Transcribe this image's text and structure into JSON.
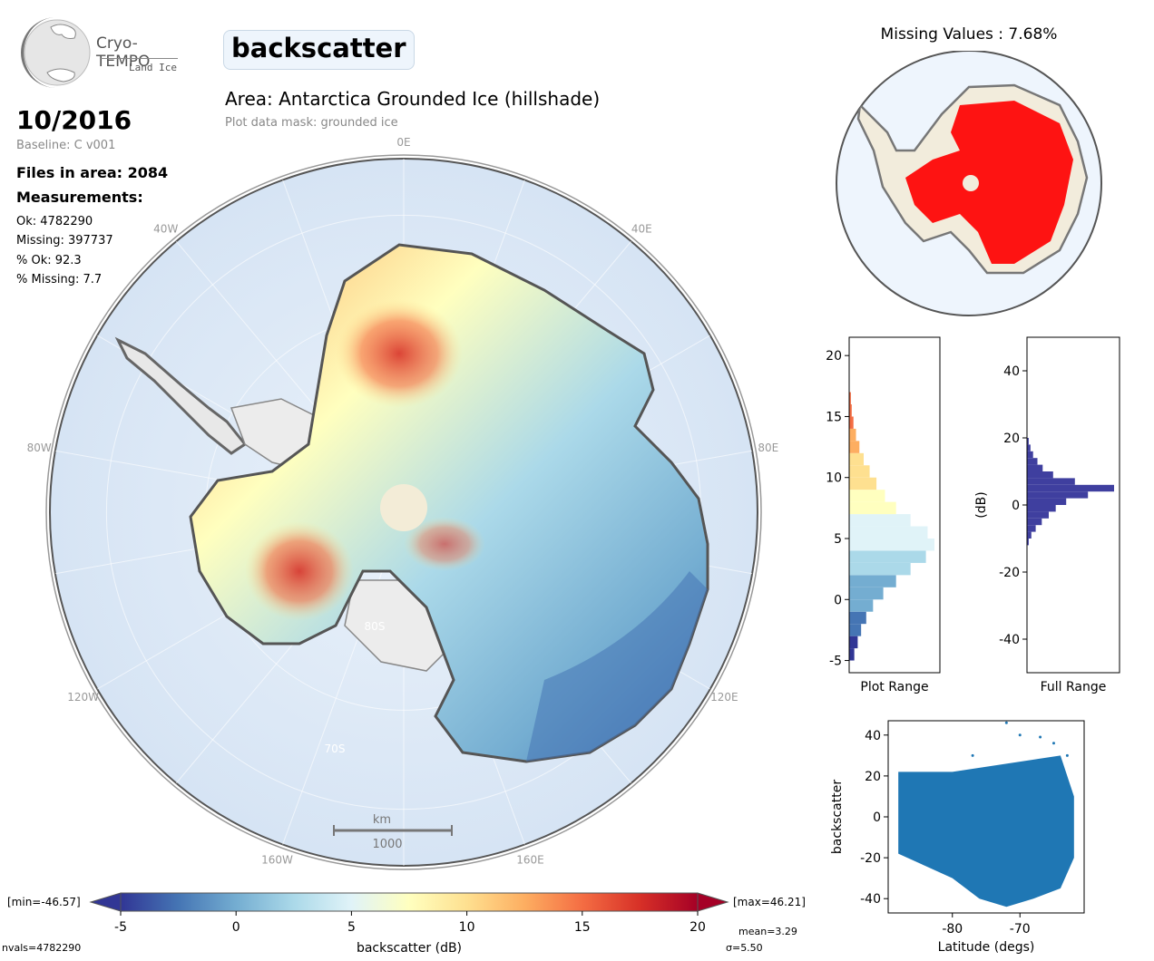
{
  "logo": {
    "name": "Cryo-TEMPO",
    "subtitle": "Land Ice"
  },
  "parameter_title": "backscatter",
  "area_title": "Area: Antarctica Grounded Ice (hillshade)",
  "mask_note": "Plot data mask: grounded ice",
  "date": "10/2016",
  "baseline": "Baseline: C v001",
  "files_in_area": "Files in area: 2084",
  "measurements_heading": "Measurements:",
  "stats": {
    "ok": "Ok: 4782290",
    "missing": "Missing: 397737",
    "pct_ok": "% Ok: 92.3",
    "pct_missing": "% Missing: 7.7"
  },
  "map": {
    "lon_labels": [
      "0E",
      "40E",
      "80E",
      "120E",
      "160E",
      "160W",
      "120W",
      "80W",
      "40W"
    ],
    "lat_labels": [
      "80S",
      "70S"
    ],
    "scale_bar": {
      "unit": "km",
      "length": "1000"
    }
  },
  "missing_map": {
    "title": "Missing Values : 7.68%"
  },
  "colors": {
    "colormap": [
      "#313695",
      "#4575b4",
      "#74add1",
      "#abd9e9",
      "#e0f3f8",
      "#ffffbf",
      "#fee090",
      "#fdae61",
      "#f46d43",
      "#d73027",
      "#a50026"
    ],
    "ocean": "#dce8f6",
    "land_grey": "#e9e9e9",
    "missing": "#ff0000",
    "hist_full": "#3f3f9f",
    "scatter": "#1f77b4",
    "pole_hole": "#f3ecd7"
  },
  "colorbar": {
    "min_label": "[min=-46.57]",
    "max_label": "[max=46.21]",
    "ticks": [
      "-5",
      "0",
      "5",
      "10",
      "15",
      "20"
    ],
    "range": [
      -5,
      20
    ],
    "label": "backscatter (dB)",
    "mean": "mean=3.29",
    "sigma": "σ=5.50",
    "nvals": "nvals=4782290"
  },
  "chart_data": [
    {
      "type": "bar",
      "orientation": "horizontal",
      "title": "",
      "xlabel": "Plot Range",
      "ylabel": "",
      "ylim": [
        -6,
        21.5
      ],
      "yticks": [
        -5,
        0,
        5,
        10,
        15,
        20
      ],
      "bins": [
        -5,
        -4,
        -3,
        -2,
        -1,
        0,
        1,
        2,
        3,
        4,
        5,
        6,
        7,
        8,
        9,
        10,
        11,
        12,
        13,
        14,
        15,
        16
      ],
      "counts": [
        0.06,
        0.1,
        0.14,
        0.2,
        0.28,
        0.4,
        0.55,
        0.72,
        0.9,
        1.0,
        0.92,
        0.72,
        0.55,
        0.42,
        0.32,
        0.24,
        0.17,
        0.12,
        0.08,
        0.05,
        0.03,
        0.02
      ]
    },
    {
      "type": "bar",
      "orientation": "horizontal",
      "title": "",
      "xlabel": "Full Range",
      "ylabel": "(dB)",
      "ylim": [
        -50,
        50
      ],
      "yticks": [
        -40,
        -20,
        0,
        20,
        40
      ],
      "bins": [
        -12,
        -10,
        -8,
        -6,
        -4,
        -2,
        0,
        2,
        4,
        6,
        8,
        10,
        12,
        14,
        16,
        18
      ],
      "counts": [
        0.02,
        0.05,
        0.1,
        0.17,
        0.25,
        0.33,
        0.45,
        0.7,
        1.0,
        0.55,
        0.3,
        0.18,
        0.12,
        0.07,
        0.04,
        0.02
      ]
    },
    {
      "type": "scatter",
      "title": "",
      "xlabel": "Latitude (degs)",
      "ylabel": "backscatter",
      "xlim": [
        -89.5,
        -60.5
      ],
      "ylim": [
        -47,
        47
      ],
      "xticks": [
        -80,
        -70
      ],
      "yticks": [
        -40,
        -20,
        0,
        20,
        40
      ],
      "series": [
        {
          "x": [
            -88,
            -84,
            -80,
            -76,
            -72,
            -68,
            -64,
            -62
          ],
          "y_low": [
            -18,
            -24,
            -30,
            -40,
            -44,
            -40,
            -35,
            -20
          ],
          "y_high": [
            22,
            22,
            22,
            24,
            26,
            28,
            30,
            10
          ],
          "outliers": [
            [
              -72,
              46
            ],
            [
              -70,
              40
            ],
            [
              -67,
              39
            ],
            [
              -65,
              36
            ],
            [
              -77,
              30
            ],
            [
              -63,
              30
            ]
          ]
        }
      ]
    }
  ]
}
